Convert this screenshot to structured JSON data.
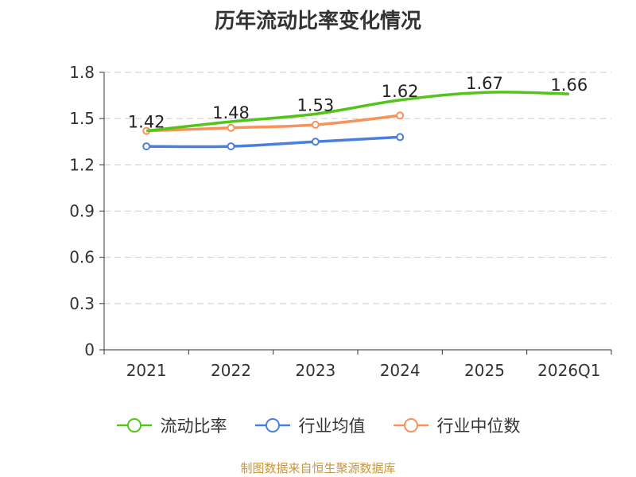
{
  "chart_data": {
    "type": "line",
    "title": "历年流动比率变化情况",
    "categories": [
      "2021",
      "2022",
      "2023",
      "2024",
      "2025",
      "2026Q1"
    ],
    "y_ticks": [
      "0",
      "0.3",
      "0.6",
      "0.9",
      "1.2",
      "1.5",
      "1.8"
    ],
    "ylim": [
      0,
      1.8
    ],
    "grid": true,
    "legend_position": "bottom",
    "series": [
      {
        "name": "流动比率",
        "color": "#52c41a",
        "values": [
          1.42,
          1.48,
          1.53,
          1.62,
          1.67,
          1.66
        ],
        "labels": [
          "1.42",
          "1.48",
          "1.53",
          "1.62",
          "1.67",
          "1.66"
        ]
      },
      {
        "name": "行业均值",
        "color": "#4a7fdb",
        "values": [
          1.32,
          1.32,
          1.35,
          1.38,
          null,
          null
        ]
      },
      {
        "name": "行业中位数",
        "color": "#f7925a",
        "values": [
          1.42,
          1.44,
          1.46,
          1.52,
          null,
          null
        ]
      }
    ]
  },
  "source_note": "制图数据来自恒生聚源数据库",
  "source_color": "#c8963e"
}
